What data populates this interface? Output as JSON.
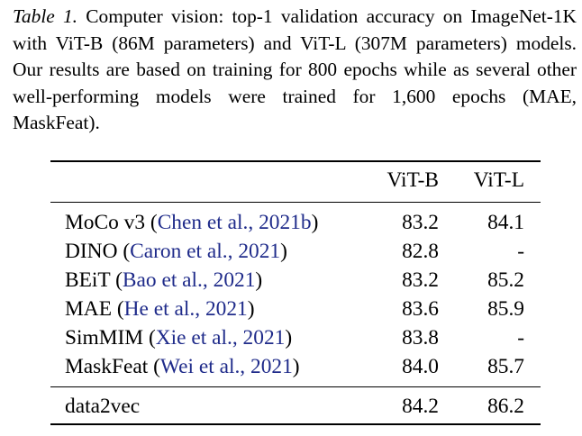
{
  "caption": {
    "label": "Table 1.",
    "text": "Computer vision: top-1 validation accuracy on ImageNet-1K with ViT-B (86M parameters) and ViT-L (307M parameters) models. Our results are based on training for 800 epochs while as several other well-performing models were trained for 1,600 epochs (MAE, MaskFeat)."
  },
  "table": {
    "headers": [
      "",
      "ViT-B",
      "ViT-L"
    ],
    "rows": [
      {
        "method": "MoCo v3",
        "cite_open": "(",
        "cite_authors": "Chen et al.,",
        "cite_year": "2021b",
        "cite_close": ")",
        "vitb": "83.2",
        "vitl": "84.1"
      },
      {
        "method": "DINO",
        "cite_open": "(",
        "cite_authors": "Caron et al.,",
        "cite_year": "2021",
        "cite_close": ")",
        "vitb": "82.8",
        "vitl": "-"
      },
      {
        "method": "BEiT",
        "cite_open": "(",
        "cite_authors": "Bao et al.,",
        "cite_year": "2021",
        "cite_close": ")",
        "vitb": "83.2",
        "vitl": "85.2"
      },
      {
        "method": "MAE",
        "cite_open": "(",
        "cite_authors": "He et al.,",
        "cite_year": "2021",
        "cite_close": ")",
        "vitb": "83.6",
        "vitl": "85.9"
      },
      {
        "method": "SimMIM",
        "cite_open": "(",
        "cite_authors": "Xie et al.,",
        "cite_year": "2021",
        "cite_close": ")",
        "vitb": "83.8",
        "vitl": "-"
      },
      {
        "method": "MaskFeat",
        "cite_open": "(",
        "cite_authors": "Wei et al.,",
        "cite_year": "2021",
        "cite_close": ")",
        "vitb": "84.0",
        "vitl": "85.7"
      }
    ],
    "final_row": {
      "method": "data2vec",
      "vitb": "84.2",
      "vitl": "86.2"
    }
  },
  "colors": {
    "citation": "#1f2b8a",
    "text": "#000000"
  }
}
